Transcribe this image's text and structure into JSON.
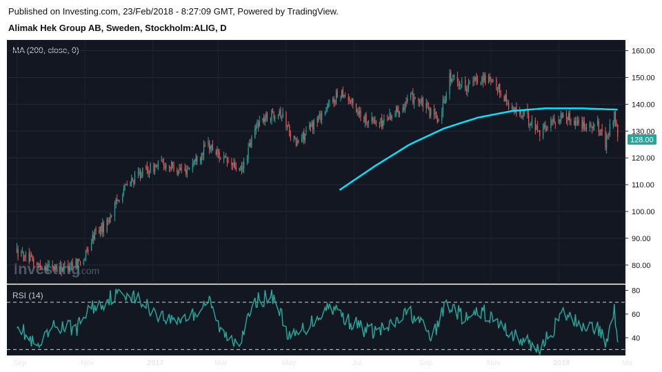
{
  "header": {
    "published": "Published on Investing.com, 23/Feb/2018 - 8:27:09 GMT, Powered by TradingView.",
    "symbol": "Alimak Hek Group AB, Sweden, Stockholm:ALIG, D"
  },
  "watermark": {
    "brand": "Investing",
    "suffix": ".com"
  },
  "colors": {
    "background": "#131722",
    "up": "#26a69a",
    "down": "#ef5350",
    "ma": "#00e5ff",
    "rsi": "#26a69a",
    "last_price_bg": "#26a69a"
  },
  "chart_data": [
    {
      "type": "candlestick",
      "indicator_label": "MA (200, close, 0)",
      "y_ticks": [
        "160.00",
        "150.00",
        "140.00",
        "130.00",
        "120.00",
        "110.00",
        "100.00",
        "90.00",
        "80.00"
      ],
      "ylim": [
        73,
        164
      ],
      "last_price": "128.00",
      "anchors": [
        [
          "2016-09-01",
          85
        ],
        [
          "2016-09-20",
          80
        ],
        [
          "2016-10-10",
          79
        ],
        [
          "2016-10-31",
          82
        ],
        [
          "2016-11-10",
          92
        ],
        [
          "2016-11-20",
          95
        ],
        [
          "2016-12-05",
          108
        ],
        [
          "2016-12-20",
          114
        ],
        [
          "2017-01-10",
          118
        ],
        [
          "2017-01-30",
          115
        ],
        [
          "2017-02-20",
          125
        ],
        [
          "2017-03-10",
          118
        ],
        [
          "2017-03-22",
          115
        ],
        [
          "2017-04-05",
          133
        ],
        [
          "2017-04-25",
          138
        ],
        [
          "2017-05-10",
          125
        ],
        [
          "2017-06-05",
          138
        ],
        [
          "2017-06-20",
          145
        ],
        [
          "2017-07-10",
          135
        ],
        [
          "2017-07-25",
          133
        ],
        [
          "2017-08-15",
          140
        ],
        [
          "2017-08-25",
          143
        ],
        [
          "2017-09-05",
          138
        ],
        [
          "2017-09-15",
          134
        ],
        [
          "2017-09-25",
          150
        ],
        [
          "2017-10-10",
          147
        ],
        [
          "2017-10-25",
          150
        ],
        [
          "2017-11-10",
          145
        ],
        [
          "2017-11-20",
          138
        ],
        [
          "2017-12-01",
          136
        ],
        [
          "2017-12-15",
          130
        ],
        [
          "2018-01-05",
          136
        ],
        [
          "2018-01-20",
          133
        ],
        [
          "2018-02-05",
          132
        ],
        [
          "2018-02-12",
          125
        ],
        [
          "2018-02-20",
          137
        ],
        [
          "2018-02-23",
          128
        ]
      ],
      "ma200": [
        [
          "2017-06-18",
          108
        ],
        [
          "2017-07-20",
          117
        ],
        [
          "2017-08-20",
          125
        ],
        [
          "2017-09-20",
          131
        ],
        [
          "2017-10-20",
          135
        ],
        [
          "2017-11-20",
          137.5
        ],
        [
          "2017-12-20",
          138.5
        ],
        [
          "2018-01-20",
          138.5
        ],
        [
          "2018-02-23",
          138
        ]
      ],
      "x_ticks": [
        {
          "label": "Sep",
          "date": "2016-09-01",
          "bold": false
        },
        {
          "label": "Nov",
          "date": "2016-11-01",
          "bold": false
        },
        {
          "label": "2017",
          "date": "2017-01-01",
          "bold": true
        },
        {
          "label": "Mar",
          "date": "2017-03-01",
          "bold": false
        },
        {
          "label": "May",
          "date": "2017-05-01",
          "bold": false
        },
        {
          "label": "Jul",
          "date": "2017-07-01",
          "bold": false
        },
        {
          "label": "Sep",
          "date": "2017-09-01",
          "bold": false
        },
        {
          "label": "Nov",
          "date": "2017-11-01",
          "bold": false
        },
        {
          "label": "2018",
          "date": "2018-01-01",
          "bold": true
        },
        {
          "label": "Ma",
          "date": "2018-03-01",
          "bold": false
        }
      ],
      "xlim": [
        "2016-08-23",
        "2018-03-02"
      ]
    },
    {
      "type": "line",
      "indicator_label": "RSI (14)",
      "y_ticks": [
        "80",
        "60",
        "40"
      ],
      "ylim": [
        25,
        85
      ],
      "bands": [
        70,
        30
      ],
      "anchors": [
        [
          "2016-09-01",
          55
        ],
        [
          "2016-09-10",
          40
        ],
        [
          "2016-09-20",
          30
        ],
        [
          "2016-10-05",
          50
        ],
        [
          "2016-10-25",
          48
        ],
        [
          "2016-11-05",
          65
        ],
        [
          "2016-11-15",
          68
        ],
        [
          "2016-11-25",
          75
        ],
        [
          "2016-12-10",
          78
        ],
        [
          "2016-12-25",
          68
        ],
        [
          "2017-01-15",
          55
        ],
        [
          "2017-02-05",
          58
        ],
        [
          "2017-02-20",
          72
        ],
        [
          "2017-03-05",
          42
        ],
        [
          "2017-03-20",
          38
        ],
        [
          "2017-04-05",
          72
        ],
        [
          "2017-04-20",
          75
        ],
        [
          "2017-05-05",
          38
        ],
        [
          "2017-05-20",
          50
        ],
        [
          "2017-06-10",
          68
        ],
        [
          "2017-06-25",
          55
        ],
        [
          "2017-07-15",
          45
        ],
        [
          "2017-08-01",
          48
        ],
        [
          "2017-08-20",
          62
        ],
        [
          "2017-09-10",
          40
        ],
        [
          "2017-09-22",
          70
        ],
        [
          "2017-10-10",
          55
        ],
        [
          "2017-10-25",
          62
        ],
        [
          "2017-11-10",
          50
        ],
        [
          "2017-11-25",
          40
        ],
        [
          "2017-12-15",
          30
        ],
        [
          "2018-01-05",
          60
        ],
        [
          "2018-01-20",
          52
        ],
        [
          "2018-02-05",
          48
        ],
        [
          "2018-02-12",
          35
        ],
        [
          "2018-02-20",
          65
        ],
        [
          "2018-02-23",
          41
        ]
      ]
    }
  ]
}
